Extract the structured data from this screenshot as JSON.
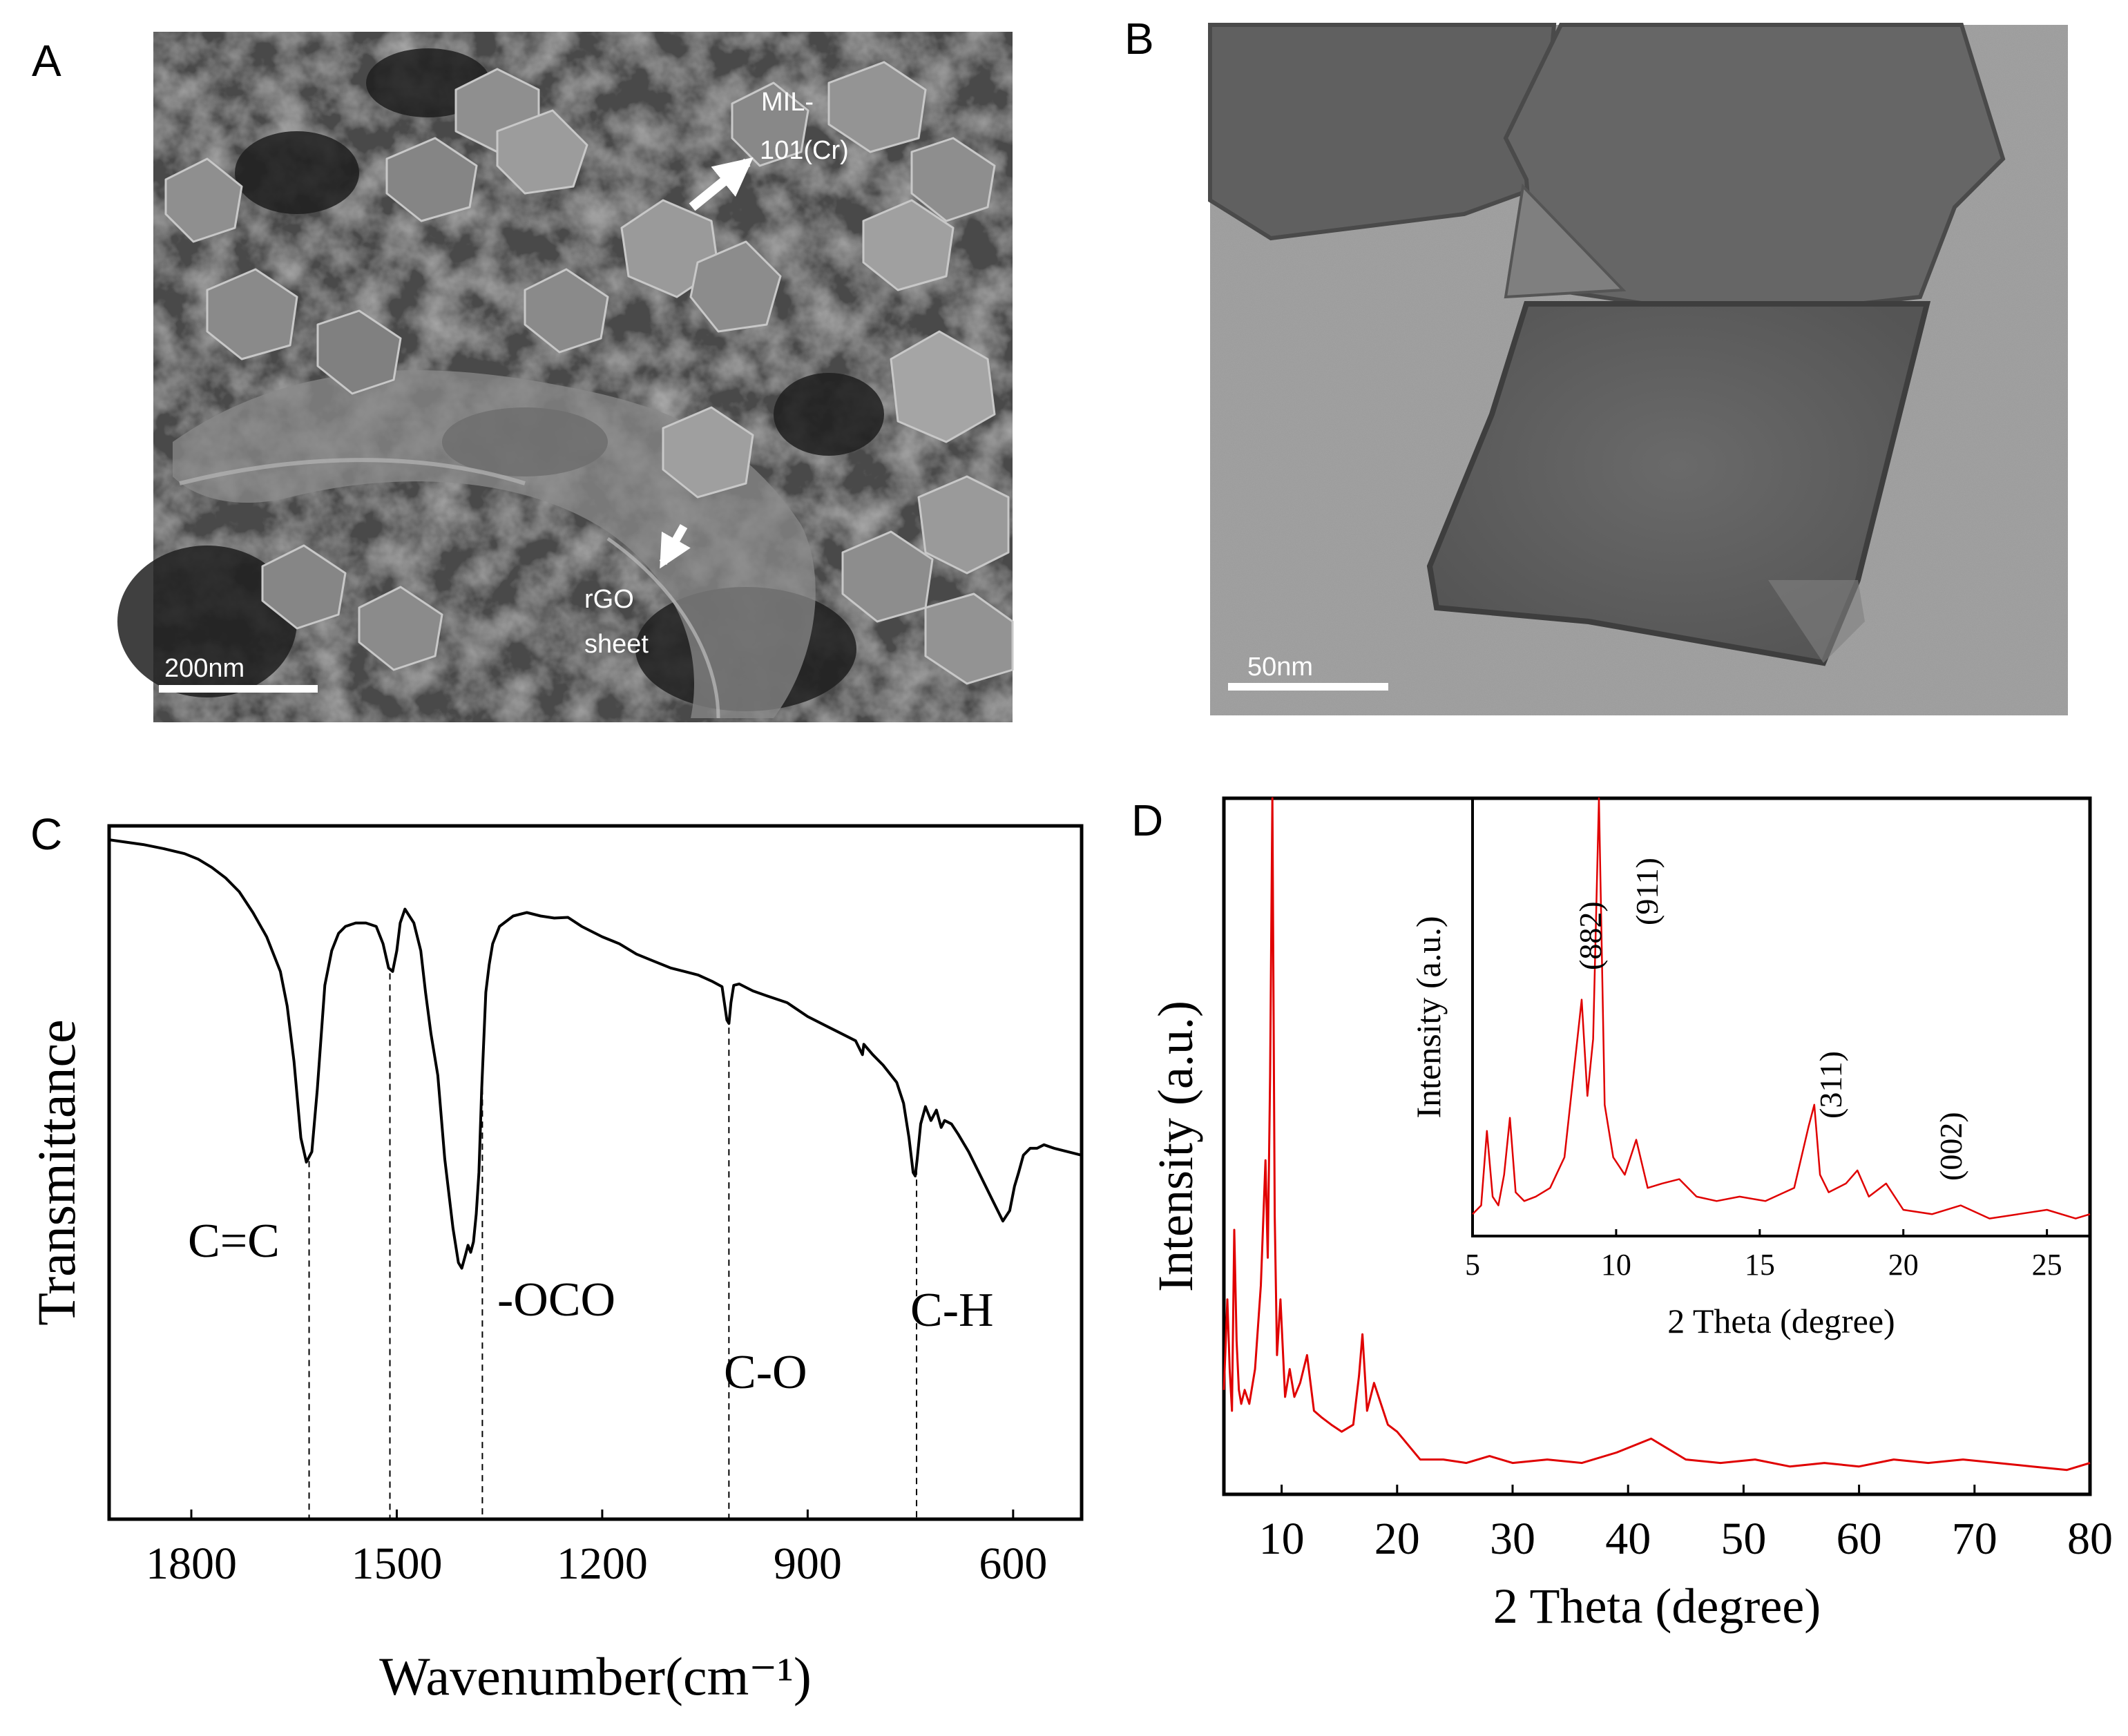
{
  "panels": {
    "a": {
      "letter": "A",
      "annotation_mof": [
        "MIL-",
        "101(Cr)"
      ],
      "annotation_rgo": [
        "rGO",
        "sheet"
      ],
      "scale_bar": "200nm"
    },
    "b": {
      "letter": "B",
      "scale_bar": "50nm"
    },
    "c": {
      "letter": "C"
    },
    "d": {
      "letter": "D"
    }
  },
  "chart_data": [
    {
      "panel": "C",
      "type": "line",
      "xlabel": "Wavenumber(cm⁻¹)",
      "ylabel": "Transmittance",
      "x_reversed": true,
      "xlim": [
        1920,
        500
      ],
      "ylim": [
        0,
        100
      ],
      "x_ticks": [
        1800,
        1500,
        1200,
        900,
        600
      ],
      "y_ticks_shown": false,
      "grid": false,
      "series": [
        {
          "color": "#000000",
          "x": [
            1920,
            1870,
            1840,
            1810,
            1790,
            1770,
            1750,
            1730,
            1710,
            1690,
            1670,
            1660,
            1650,
            1640,
            1632,
            1624,
            1616,
            1605,
            1595,
            1585,
            1575,
            1560,
            1545,
            1530,
            1520,
            1512,
            1506,
            1500,
            1495,
            1488,
            1475,
            1465,
            1458,
            1450,
            1440,
            1430,
            1418,
            1410,
            1405,
            1400,
            1396,
            1392,
            1388,
            1384,
            1380,
            1376,
            1370,
            1365,
            1360,
            1350,
            1330,
            1310,
            1290,
            1270,
            1250,
            1230,
            1200,
            1175,
            1150,
            1125,
            1100,
            1080,
            1060,
            1040,
            1025,
            1018,
            1015,
            1012,
            1008,
            1000,
            980,
            960,
            930,
            900,
            870,
            850,
            830,
            820,
            818,
            805,
            790,
            770,
            760,
            752,
            746,
            743,
            740,
            735,
            728,
            720,
            712,
            705,
            700,
            690,
            680,
            665,
            650,
            630,
            615,
            605,
            598,
            592,
            585,
            575,
            565,
            555,
            540,
            520,
            500
          ],
          "y": [
            98,
            97.3,
            96.7,
            96,
            95.2,
            94,
            92.5,
            90.5,
            87.5,
            84,
            79,
            74,
            66,
            55,
            51.5,
            53,
            62,
            77,
            82,
            84.5,
            85.5,
            86,
            86,
            85.5,
            83,
            79.5,
            79,
            82,
            86,
            88,
            86,
            82,
            76,
            70,
            64,
            52,
            42,
            37,
            36.2,
            38,
            39.5,
            38.5,
            40,
            44,
            50,
            62,
            76,
            80,
            83,
            85.5,
            87,
            87.5,
            87,
            86.7,
            86.8,
            85.5,
            84,
            83,
            81.5,
            80.5,
            79.5,
            79,
            78.5,
            77.6,
            76.8,
            72,
            71.5,
            74.5,
            77,
            77.2,
            76.2,
            75.5,
            74.5,
            72.5,
            71,
            70,
            69,
            67,
            68.5,
            67,
            65.5,
            63,
            60,
            55,
            50,
            49.5,
            52,
            57,
            59.5,
            57.5,
            59,
            56.5,
            57.5,
            57,
            55.5,
            53,
            50,
            46,
            43,
            44.5,
            48,
            50,
            52.5,
            53.5,
            53.5,
            54,
            53.5,
            53,
            52.5
          ]
        }
      ],
      "annotations": [
        {
          "text": "C=C",
          "x": 1628
        },
        {
          "text": "",
          "x": 1510
        },
        {
          "text": "-OCO",
          "x": 1375
        },
        {
          "text": "C-O",
          "x": 1015
        },
        {
          "text": "C-H",
          "x": 741
        }
      ]
    },
    {
      "panel": "D",
      "type": "line",
      "xlabel": "2 Theta (degree)",
      "ylabel": "Intensity (a.u.)",
      "xlim": [
        5,
        80
      ],
      "ylim": [
        0,
        100
      ],
      "x_ticks": [
        10,
        20,
        30,
        40,
        50,
        60,
        70,
        80
      ],
      "y_ticks_shown": false,
      "grid": false,
      "series": [
        {
          "color": "#e00000",
          "x": [
            5,
            5.3,
            5.5,
            5.7,
            5.9,
            6.1,
            6.3,
            6.5,
            6.8,
            7.2,
            7.7,
            8.2,
            8.6,
            8.8,
            9.0,
            9.2,
            9.4,
            9.6,
            9.9,
            10.3,
            10.7,
            11.1,
            11.6,
            12.2,
            12.8,
            13.5,
            14.3,
            15.2,
            16.2,
            16.7,
            17.0,
            17.4,
            18.0,
            18.6,
            19.2,
            20,
            21,
            22,
            24,
            26,
            28,
            30,
            33,
            36,
            39,
            42,
            45,
            48,
            51,
            54,
            57,
            60,
            63,
            66,
            69,
            72,
            75,
            78,
            80
          ],
          "y": [
            15,
            28,
            18,
            12,
            38,
            22,
            15,
            13,
            15,
            13,
            18,
            30,
            48,
            34,
            60,
            100,
            40,
            20,
            28,
            14,
            18,
            14,
            16,
            20,
            12,
            11,
            10,
            9,
            10,
            17,
            23,
            12,
            16,
            13,
            10,
            9,
            7,
            5,
            5,
            4.5,
            5.5,
            4.5,
            5,
            4.5,
            6,
            8,
            5,
            4.5,
            5,
            4,
            4.5,
            4,
            5,
            4.5,
            5,
            4.5,
            4,
            3.5,
            4.5
          ]
        }
      ]
    },
    {
      "panel": "D-inset",
      "type": "line",
      "xlabel": "2 Theta (degree)",
      "ylabel": "Intensity (a.u.)",
      "xlim": [
        5,
        26.5
      ],
      "ylim": [
        0,
        100
      ],
      "x_ticks": [
        5,
        10,
        15,
        20,
        25
      ],
      "y_ticks_shown": false,
      "grid": false,
      "series": [
        {
          "color": "#e00000",
          "x": [
            5,
            5.3,
            5.5,
            5.7,
            5.9,
            6.1,
            6.3,
            6.5,
            6.8,
            7.2,
            7.7,
            8.2,
            8.6,
            8.8,
            9.0,
            9.2,
            9.4,
            9.6,
            9.9,
            10.3,
            10.7,
            11.1,
            11.6,
            12.2,
            12.8,
            13.5,
            14.3,
            15.2,
            16.2,
            16.7,
            16.9,
            17.1,
            17.4,
            18.0,
            18.4,
            18.8,
            19.4,
            20,
            21,
            22,
            23,
            24,
            25,
            26,
            26.5
          ],
          "y": [
            5,
            7,
            24,
            9,
            7,
            14,
            27,
            10,
            8,
            9,
            11,
            18,
            42,
            54,
            32,
            45,
            100,
            30,
            18,
            14,
            22,
            11,
            12,
            13,
            9,
            8,
            9,
            8,
            11,
            25,
            30,
            14,
            10,
            12,
            15,
            9,
            12,
            6,
            5,
            7,
            4,
            5,
            6,
            4,
            5
          ]
        }
      ],
      "peak_labels": [
        {
          "text": "(882)",
          "x": 8.7
        },
        {
          "text": "(911)",
          "x": 9.8
        },
        {
          "text": "(311)",
          "x": 17.5
        },
        {
          "text": "(002)",
          "x": 22.3
        }
      ]
    }
  ]
}
